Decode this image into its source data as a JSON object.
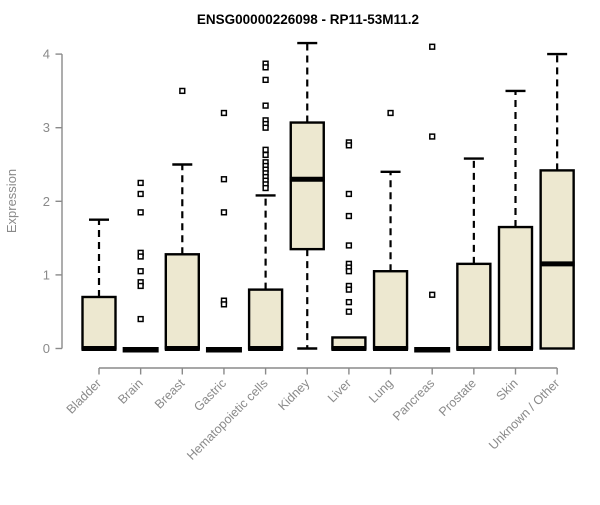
{
  "title": "ENSG00000226098 - RP11-53M11.2",
  "chart_data": {
    "type": "boxplot",
    "title": "ENSG00000226098 - RP11-53M11.2",
    "xlabel": "",
    "ylabel": "Expression",
    "ylim": [
      0,
      4.2
    ],
    "yticks": [
      "0",
      "1",
      "2",
      "3",
      "4"
    ],
    "grid": false,
    "legend": "none",
    "categories": [
      "Bladder",
      "Brain",
      "Breast",
      "Gastric",
      "Hematopoietic cells",
      "Kidney",
      "Liver",
      "Lung",
      "Pancreas",
      "Prostate",
      "Skin",
      "Unknown / Other"
    ],
    "boxes": [
      {
        "category": "Bladder",
        "whisker_low": 0,
        "q1": 0,
        "median": 0,
        "q3": 0.7,
        "whisker_high": 1.75,
        "outliers": []
      },
      {
        "category": "Brain",
        "whisker_low": 0,
        "q1": 0,
        "median": 0,
        "q3": 0,
        "whisker_high": 0,
        "outliers": [
          2.25,
          2.1,
          1.85,
          1.3,
          1.25,
          1.05,
          0.9,
          0.85,
          0.4
        ]
      },
      {
        "category": "Breast",
        "whisker_low": 0,
        "q1": 0,
        "median": 0,
        "q3": 1.28,
        "whisker_high": 2.5,
        "outliers": [
          3.5
        ]
      },
      {
        "category": "Gastric",
        "whisker_low": 0,
        "q1": 0,
        "median": 0,
        "q3": 0,
        "whisker_high": 0,
        "outliers": [
          3.2,
          2.3,
          1.85,
          0.65,
          0.6
        ]
      },
      {
        "category": "Hematopoietic cells",
        "whisker_low": 0,
        "q1": 0,
        "median": 0,
        "q3": 0.8,
        "whisker_high": 2.08,
        "outliers": [
          3.87,
          3.82,
          3.65,
          3.3,
          3.1,
          3.05,
          3.0,
          2.7,
          2.63,
          2.53,
          2.48,
          2.43,
          2.38,
          2.33,
          2.28,
          2.23,
          2.18
        ]
      },
      {
        "category": "Kidney",
        "whisker_low": 0,
        "q1": 1.35,
        "median": 2.3,
        "q3": 3.07,
        "whisker_high": 4.15,
        "outliers": []
      },
      {
        "category": "Liver",
        "whisker_low": 0,
        "q1": 0,
        "median": 0,
        "q3": 0.15,
        "whisker_high": 0.15,
        "outliers": [
          2.8,
          2.76,
          2.1,
          1.8,
          1.4,
          1.15,
          1.1,
          1.05,
          0.85,
          0.8,
          0.63,
          0.5
        ]
      },
      {
        "category": "Lung",
        "whisker_low": 0,
        "q1": 0,
        "median": 0,
        "q3": 1.05,
        "whisker_high": 2.4,
        "outliers": [
          3.2
        ]
      },
      {
        "category": "Pancreas",
        "whisker_low": 0,
        "q1": 0,
        "median": 0,
        "q3": 0,
        "whisker_high": 0,
        "outliers": [
          4.1,
          2.88,
          0.73
        ]
      },
      {
        "category": "Prostate",
        "whisker_low": 0,
        "q1": 0,
        "median": 0,
        "q3": 1.15,
        "whisker_high": 2.58,
        "outliers": []
      },
      {
        "category": "Skin",
        "whisker_low": 0,
        "q1": 0,
        "median": 0,
        "q3": 1.65,
        "whisker_high": 3.5,
        "outliers": []
      },
      {
        "category": "Unknown / Other",
        "whisker_low": 0,
        "q1": 0,
        "median": 1.15,
        "q3": 2.42,
        "whisker_high": 4.0,
        "outliers": []
      }
    ]
  },
  "colors": {
    "box_fill": "#ede8d0",
    "box_stroke": "#000000",
    "median": "#000000",
    "whisker": "#000000",
    "outlier_stroke": "#000000",
    "outlier_fill": "#ffffff",
    "axis": "#8a8a8a",
    "title": "#000000",
    "background": "#ffffff"
  }
}
